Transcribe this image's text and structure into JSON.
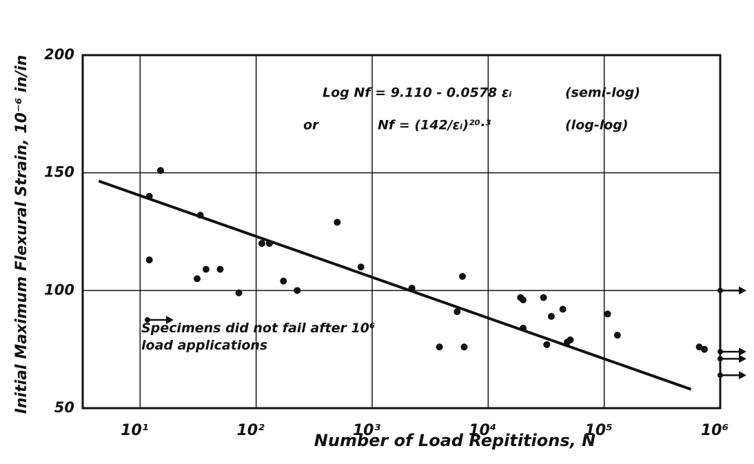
{
  "chart_data": {
    "type": "scatter",
    "x_label": "Number of Load Repititions, N",
    "y_label": "Initial Maximum Flexural Strain, 10⁻⁶ in/in",
    "annotations": [
      "Log Nf = 9.110 - 0.0578 εᵢ",
      "(semi-log)",
      "or",
      "Nf = (142/εᵢ)²⁰·³",
      "(log-log)"
    ],
    "xscale": "log",
    "xlim": [
      3.2,
      1000000
    ],
    "ylim": [
      50,
      200
    ],
    "xticks": [
      {
        "value": 10,
        "label": "10¹"
      },
      {
        "value": 100,
        "label": "10²"
      },
      {
        "value": 1000,
        "label": "10³"
      },
      {
        "value": 10000,
        "label": "10⁴"
      },
      {
        "value": 100000,
        "label": "10⁵"
      },
      {
        "value": 1000000,
        "label": "10⁶"
      }
    ],
    "yticks": [
      50,
      100,
      150,
      200
    ],
    "grid": true,
    "color": "#111111",
    "points": {
      "x": [
        12,
        15,
        12,
        33,
        31,
        37,
        49,
        71,
        112,
        130,
        172,
        226,
        500,
        800,
        2200,
        3800,
        5400,
        6200,
        6000,
        19000,
        20000,
        20000,
        30000,
        32000,
        35000,
        44000,
        48000,
        51000,
        107000,
        130000,
        660000,
        730000
      ],
      "y": [
        140,
        151,
        113,
        132,
        105,
        109,
        109,
        99,
        120,
        120,
        104,
        100,
        129,
        110,
        101,
        76,
        91,
        76,
        106,
        97,
        96,
        84,
        97,
        77,
        89,
        92,
        78,
        79,
        90,
        81,
        76,
        75
      ]
    },
    "runouts": {
      "name": "Specimens did not fail after 10⁶ load applications",
      "x": [
        1000000,
        1000000,
        1000000,
        1000000
      ],
      "y": [
        100,
        74,
        71,
        64
      ]
    },
    "fit_line": {
      "x": [
        4.4,
        560000
      ],
      "y": [
        146.5,
        58
      ]
    }
  }
}
